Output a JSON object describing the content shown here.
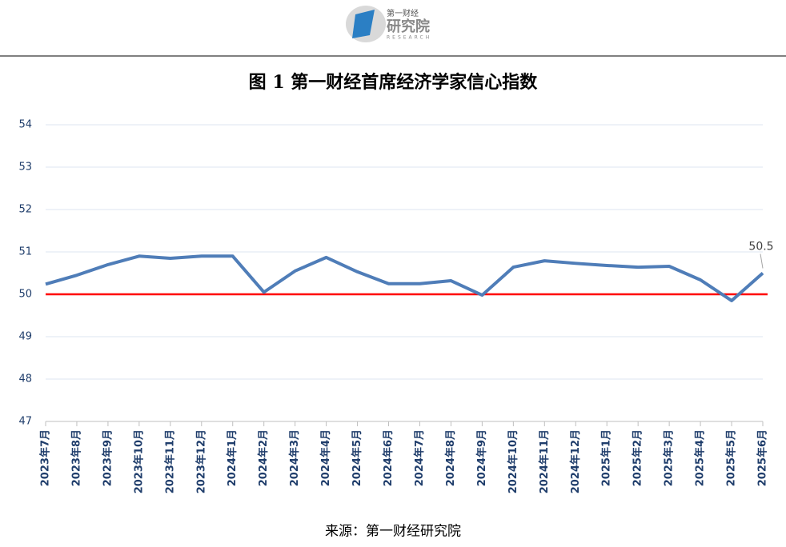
{
  "header": {
    "logo_top": "第一财经",
    "logo_main": "研究院",
    "logo_sub": "RESEARCH"
  },
  "chart_data": {
    "type": "line",
    "title": "图 1  第一财经首席经济学家信心指数",
    "source": "来源：第一财经研究院",
    "categories": [
      "2023年7月",
      "2023年8月",
      "2023年9月",
      "2023年10月",
      "2023年11月",
      "2023年12月",
      "2024年1月",
      "2024年2月",
      "2024年3月",
      "2024年4月",
      "2024年5月",
      "2024年6月",
      "2024年7月",
      "2024年8月",
      "2024年9月",
      "2024年10月",
      "2024年11月",
      "2024年12月",
      "2025年1月",
      "2025年2月",
      "2025年3月",
      "2025年4月",
      "2025年5月",
      "2025年6月"
    ],
    "series": [
      {
        "name": "第一财经首席经济学家信心指数",
        "color": "#4f7db8",
        "values": [
          50.24,
          50.45,
          50.7,
          50.9,
          50.85,
          50.9,
          50.9,
          50.05,
          50.55,
          50.87,
          50.53,
          50.25,
          50.25,
          50.32,
          49.98,
          50.64,
          50.79,
          50.73,
          50.68,
          50.64,
          50.66,
          50.34,
          49.85,
          50.5
        ]
      }
    ],
    "reference_line": {
      "value": 50,
      "color": "#ff0000"
    },
    "ylim": [
      47,
      54
    ],
    "yticks": [
      47,
      48,
      49,
      50,
      51,
      52,
      53,
      54
    ],
    "grid": true
  }
}
